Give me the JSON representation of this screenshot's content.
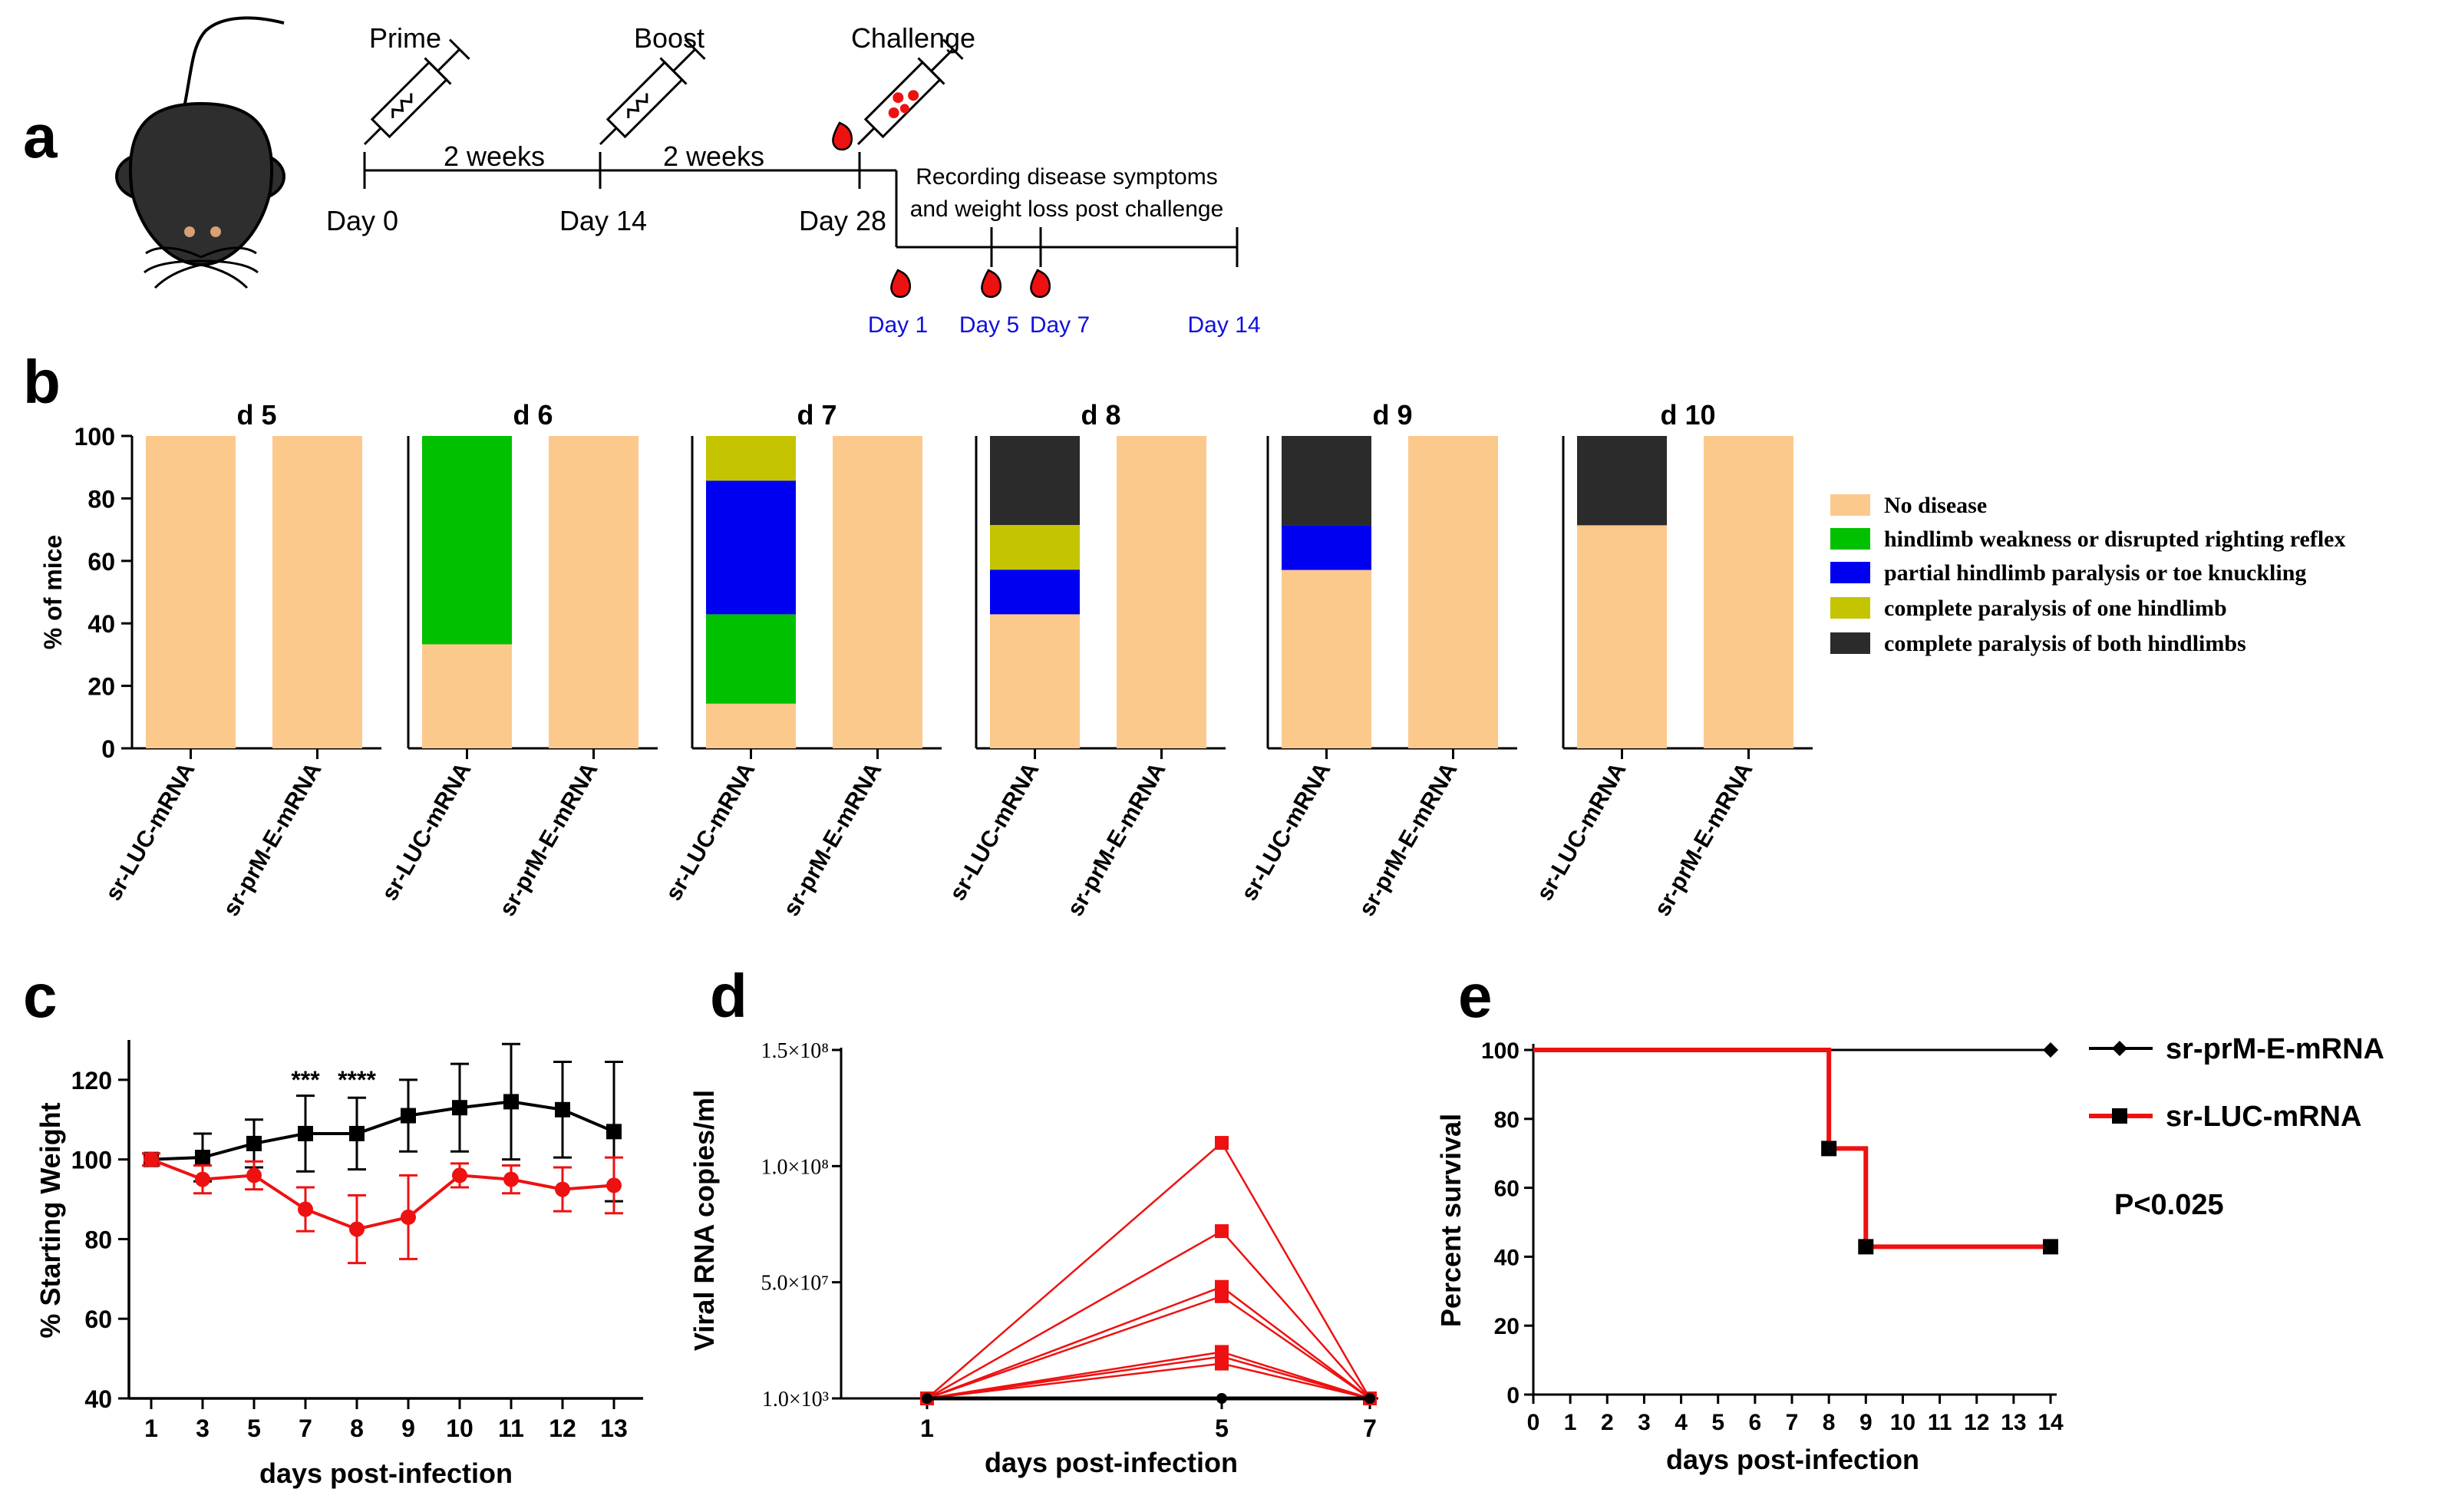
{
  "colors": {
    "no_disease": "#fcc98c",
    "weakness": "#00c000",
    "partial": "#0000f0",
    "one_limb": "#c4c400",
    "both_limbs": "#2b2b2b",
    "red": "#ee1111",
    "black": "#000000",
    "blue_text": "#1010dd"
  },
  "panel_a": {
    "letter": "a",
    "events": [
      {
        "label": "Prime",
        "day": "Day 0"
      },
      {
        "label": "Boost",
        "day": "Day 14"
      },
      {
        "label": "Challenge",
        "day": "Day 28"
      }
    ],
    "intervals": [
      "2 weeks",
      "2 weeks"
    ],
    "recording_text": [
      "Recording disease symptoms",
      "and weight loss post challenge"
    ],
    "post_days": [
      "Day 1",
      "Day 5",
      "Day 7",
      "Day 14"
    ]
  },
  "chart_data": [
    {
      "panel": "b",
      "type": "bar",
      "stacked": true,
      "ylabel": "% of mice",
      "ylim": [
        0,
        100
      ],
      "yticks": [
        0,
        20,
        40,
        60,
        80,
        100
      ],
      "categories": [
        "sr-LUC-mRNA",
        "sr-prM-E-mRNA"
      ],
      "legend": [
        "No disease",
        "hindlimb weakness or disrupted righting reflex",
        "partial hindlimb paralysis or toe knuckling",
        "complete paralysis of one hindlimb",
        "complete paralysis of both hindlimbs"
      ],
      "subplots": [
        {
          "title": "d 5",
          "bars": [
            [
              100,
              0,
              0,
              0,
              0
            ],
            [
              100,
              0,
              0,
              0,
              0
            ]
          ]
        },
        {
          "title": "d 6",
          "bars": [
            [
              33.3,
              66.7,
              0,
              0,
              0
            ],
            [
              100,
              0,
              0,
              0,
              0
            ]
          ]
        },
        {
          "title": "d 7",
          "bars": [
            [
              14.3,
              28.6,
              42.8,
              14.3,
              0
            ],
            [
              100,
              0,
              0,
              0,
              0
            ]
          ]
        },
        {
          "title": "d 8",
          "bars": [
            [
              42.9,
              0,
              14.3,
              14.3,
              28.5
            ],
            [
              100,
              0,
              0,
              0,
              0
            ]
          ]
        },
        {
          "title": "d 9",
          "bars": [
            [
              57.1,
              0,
              14.3,
              0,
              28.6
            ],
            [
              100,
              0,
              0,
              0,
              0
            ]
          ]
        },
        {
          "title": "d 10",
          "bars": [
            [
              71.4,
              0,
              0,
              0,
              28.6
            ],
            [
              100,
              0,
              0,
              0,
              0
            ]
          ]
        }
      ]
    },
    {
      "panel": "c",
      "type": "line",
      "xlabel": "days post-infection",
      "ylabel": "% Starting Weight",
      "ylim": [
        40,
        130
      ],
      "yticks": [
        40,
        60,
        80,
        100,
        120
      ],
      "categories": [
        "1",
        "3",
        "5",
        "7",
        "8",
        "9",
        "10",
        "11",
        "12",
        "13"
      ],
      "annotations": [
        {
          "text": "***",
          "category": "7"
        },
        {
          "text": "****",
          "category": "8"
        }
      ],
      "series": [
        {
          "name": "sr-prM-E-mRNA",
          "color": "black",
          "marker": "square",
          "values": [
            100,
            100.5,
            104,
            106.5,
            106.5,
            111,
            113,
            114.5,
            112.5,
            107
          ],
          "errors": [
            1.5,
            6,
            6,
            9.5,
            9,
            9,
            11,
            14.5,
            12,
            17.5
          ]
        },
        {
          "name": "sr-LUC-mRNA",
          "color": "red",
          "marker": "circle",
          "values": [
            100,
            95,
            96,
            87.5,
            82.5,
            85.5,
            96,
            95,
            92.5,
            93.5
          ],
          "errors": [
            1.5,
            3.5,
            3.5,
            5.5,
            8.5,
            10.5,
            3,
            3.5,
            5.5,
            7
          ]
        }
      ]
    },
    {
      "panel": "d",
      "type": "line",
      "xlabel": "days post-infection",
      "ylabel": "Viral RNA copies/ml",
      "x": [
        1,
        5,
        7
      ],
      "ylim": [
        1000,
        150000000
      ],
      "ytick_labels": [
        "1.0×10³",
        "5.0×10⁷",
        "1.0×10⁸",
        "1.5×10⁸"
      ],
      "ytick_values": [
        1000,
        50000000,
        100000000,
        150000000
      ],
      "series": [
        {
          "name": "sr-LUC-mRNA mouse 1",
          "color": "red",
          "values": [
            1000,
            110000000,
            1000
          ]
        },
        {
          "name": "sr-LUC-mRNA mouse 2",
          "color": "red",
          "values": [
            1000,
            72000000,
            1000
          ]
        },
        {
          "name": "sr-LUC-mRNA mouse 3",
          "color": "red",
          "values": [
            1000,
            48000000,
            1000
          ]
        },
        {
          "name": "sr-LUC-mRNA mouse 4",
          "color": "red",
          "values": [
            1000,
            44000000,
            1000
          ]
        },
        {
          "name": "sr-LUC-mRNA mouse 5",
          "color": "red",
          "values": [
            1000,
            20000000,
            1000
          ]
        },
        {
          "name": "sr-LUC-mRNA mouse 6",
          "color": "red",
          "values": [
            1000,
            18000000,
            1000
          ]
        },
        {
          "name": "sr-LUC-mRNA mouse 7",
          "color": "red",
          "values": [
            1000,
            15000000,
            1000
          ]
        },
        {
          "name": "sr-prM-E-mRNA",
          "color": "black",
          "values": [
            1000,
            1000,
            1000
          ]
        }
      ]
    },
    {
      "panel": "e",
      "type": "line",
      "step": true,
      "xlabel": "days post-infection",
      "ylabel": "Percent survival",
      "xlim": [
        0,
        14
      ],
      "ylim": [
        0,
        100
      ],
      "xticks": [
        0,
        1,
        2,
        3,
        4,
        5,
        6,
        7,
        8,
        9,
        10,
        11,
        12,
        13,
        14
      ],
      "yticks": [
        0,
        20,
        40,
        60,
        80,
        100
      ],
      "annotation": "P<0.025",
      "series": [
        {
          "name": "sr-prM-E-mRNA",
          "color": "black",
          "marker": "diamond",
          "steps": [
            [
              0,
              100
            ],
            [
              14,
              100
            ]
          ],
          "markers": [
            [
              14,
              100
            ]
          ]
        },
        {
          "name": "sr-LUC-mRNA",
          "color": "red",
          "marker": "square",
          "steps": [
            [
              0,
              100
            ],
            [
              8,
              100
            ],
            [
              8,
              71.4
            ],
            [
              9,
              71.4
            ],
            [
              9,
              42.9
            ],
            [
              14,
              42.9
            ]
          ],
          "markers": [
            [
              8,
              71.4
            ],
            [
              9,
              42.9
            ],
            [
              14,
              42.9
            ]
          ]
        }
      ]
    }
  ]
}
